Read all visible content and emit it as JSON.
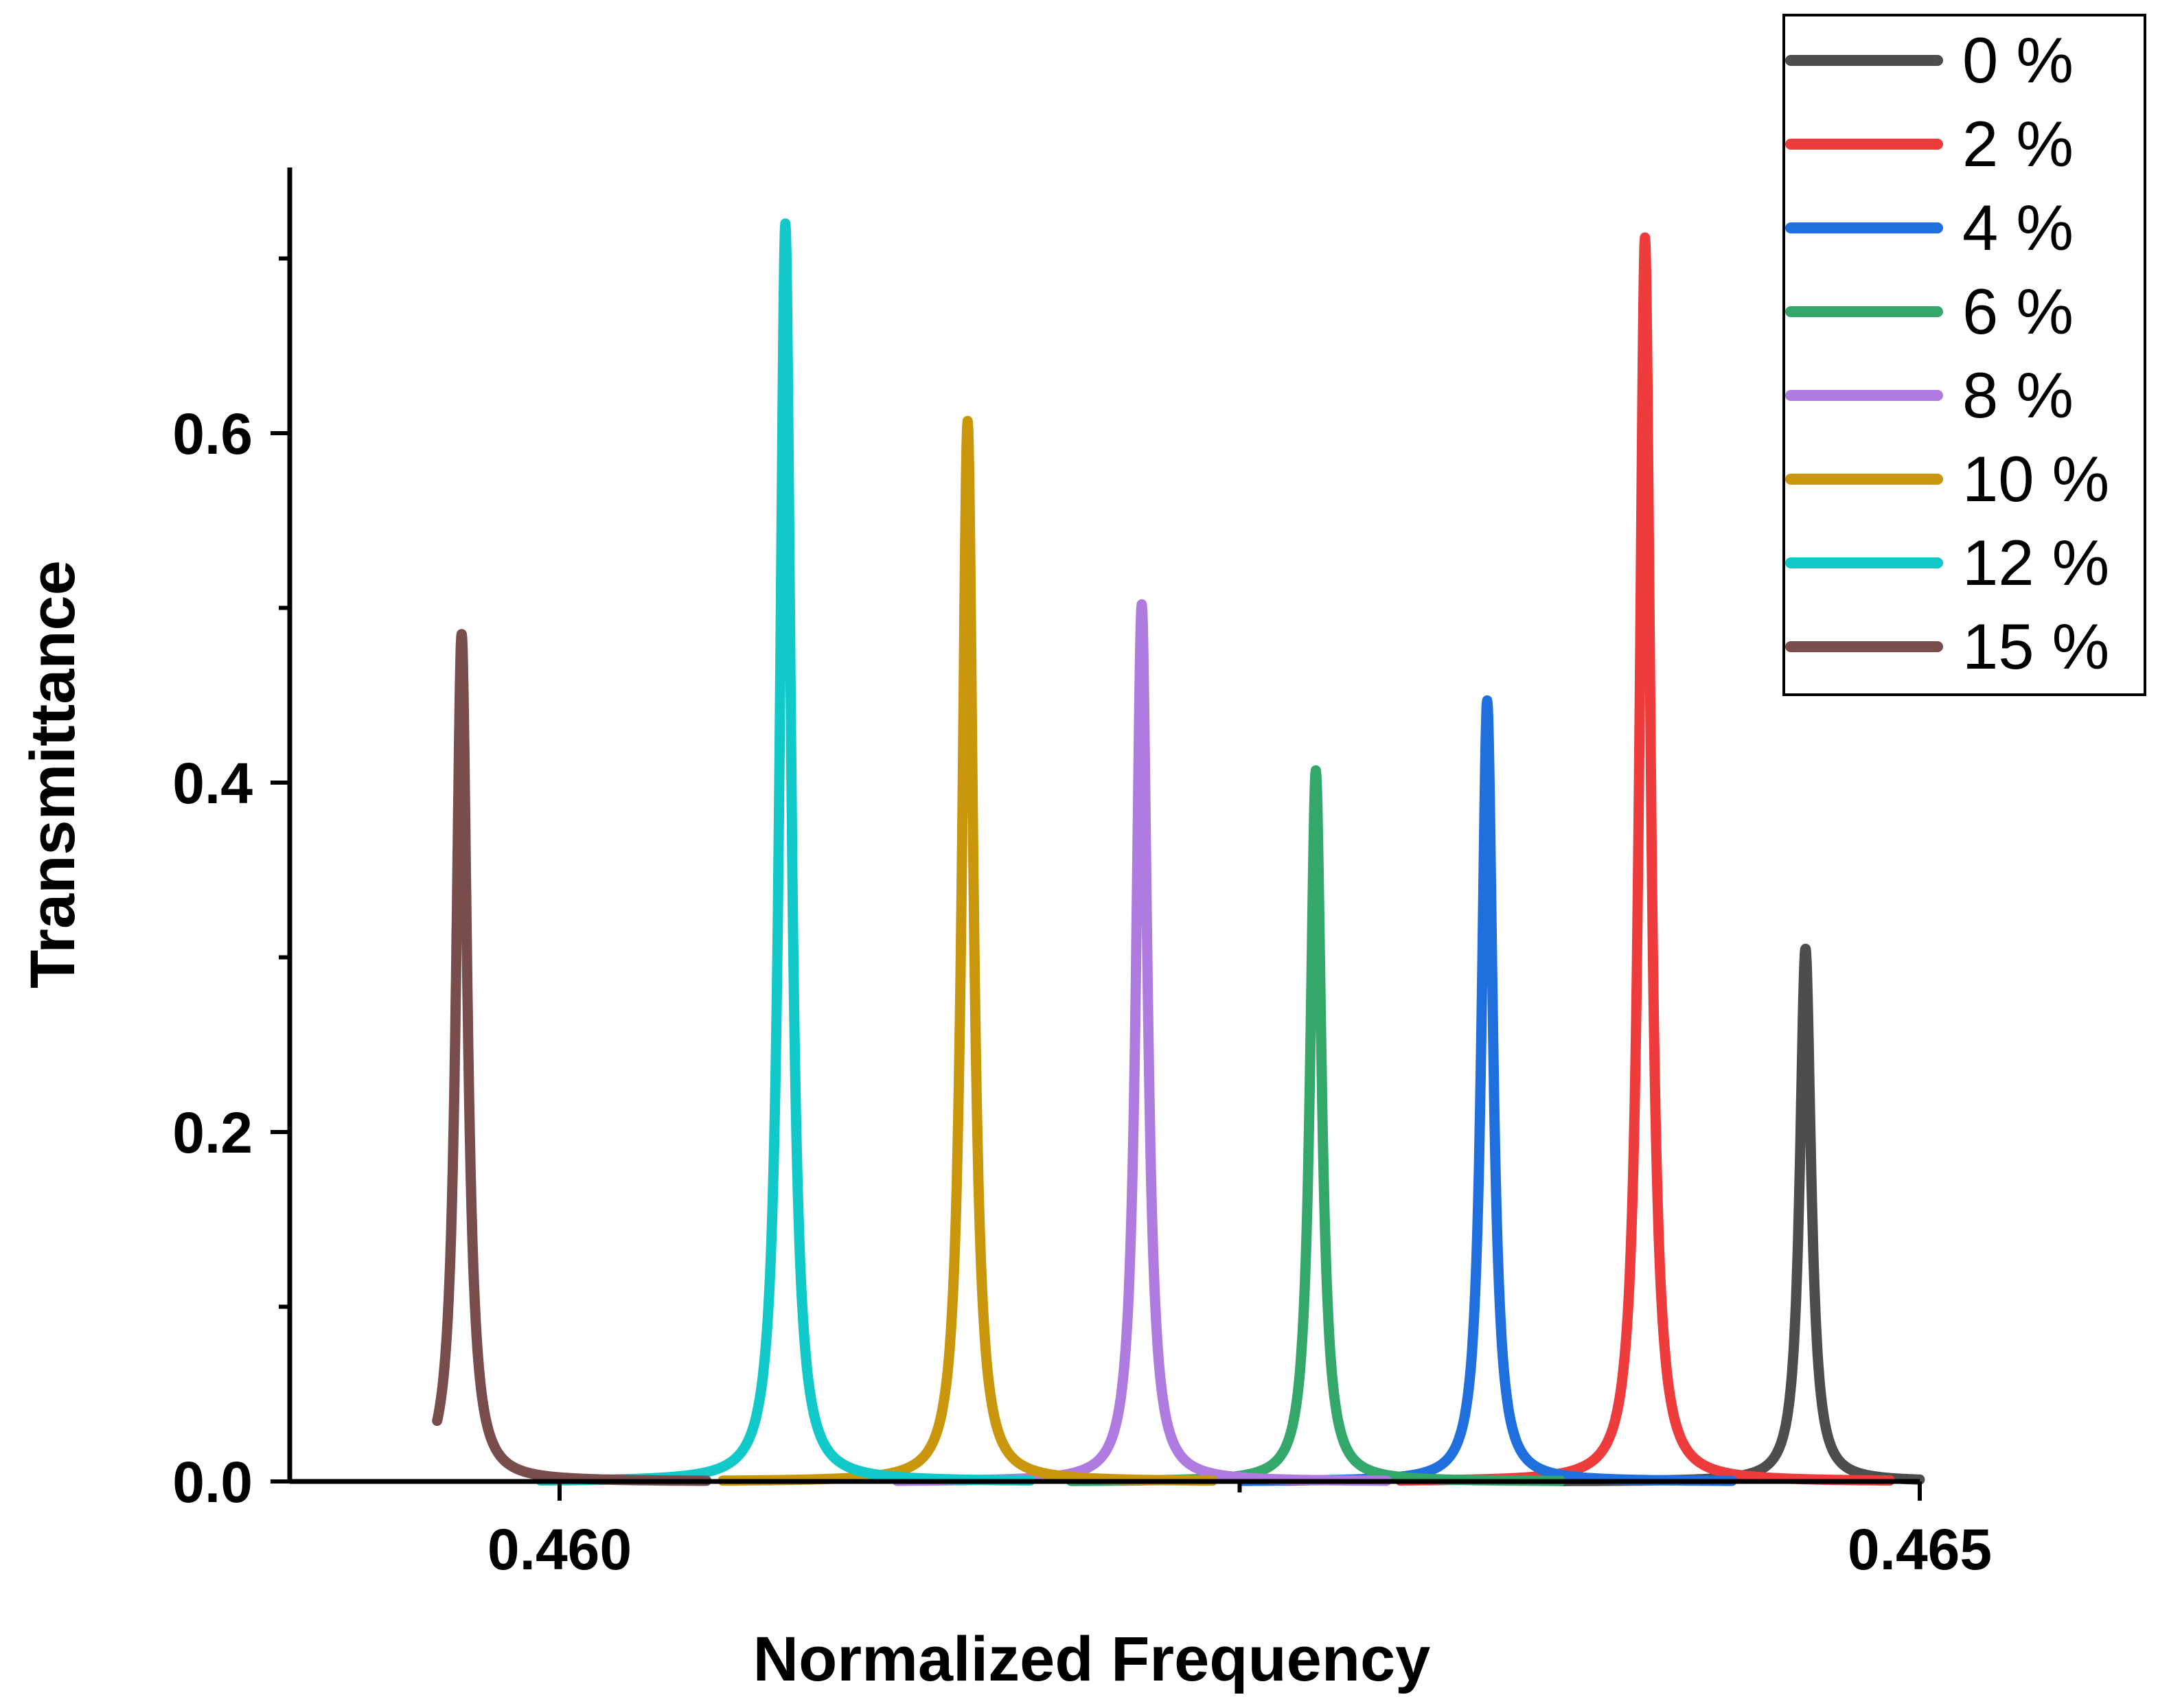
{
  "chart_data": {
    "type": "line",
    "title": "",
    "xlabel": "Normalized Frequency",
    "ylabel": "Transmittance",
    "xlim": [
      0.459,
      0.465
    ],
    "ylim": [
      0,
      0.78
    ],
    "x_ticks": [
      {
        "value": 0.46,
        "label": "0.460"
      },
      {
        "value": 0.4625,
        "label": ""
      },
      {
        "value": 0.465,
        "label": "0.465"
      }
    ],
    "y_ticks": [
      {
        "value": 0.0,
        "label": "0.0"
      },
      {
        "value": 0.1,
        "label": ""
      },
      {
        "value": 0.2,
        "label": "0.2"
      },
      {
        "value": 0.3,
        "label": ""
      },
      {
        "value": 0.4,
        "label": "0.4"
      },
      {
        "value": 0.5,
        "label": ""
      },
      {
        "value": 0.6,
        "label": "0.6"
      },
      {
        "value": 0.7,
        "label": ""
      }
    ],
    "grid": false,
    "legend_position": "top-right",
    "series": [
      {
        "name": "0 %",
        "color": "#4d4d4d",
        "peak_x": 0.46458,
        "peak_y": 0.305,
        "width": 2.5e-05
      },
      {
        "name": "2 %",
        "color": "#ee3b3b",
        "peak_x": 0.46399,
        "peak_y": 0.712,
        "width": 2.5e-05
      },
      {
        "name": "4 %",
        "color": "#1f6fde",
        "peak_x": 0.46341,
        "peak_y": 0.447,
        "width": 2.5e-05
      },
      {
        "name": "6 %",
        "color": "#34a86b",
        "peak_x": 0.46278,
        "peak_y": 0.407,
        "width": 2.5e-05
      },
      {
        "name": "8 %",
        "color": "#b07be0",
        "peak_x": 0.46214,
        "peak_y": 0.502,
        "width": 2.5e-05
      },
      {
        "name": "10 %",
        "color": "#c9960c",
        "peak_x": 0.4615,
        "peak_y": 0.607,
        "width": 2.5e-05
      },
      {
        "name": "12 %",
        "color": "#12c9c9",
        "peak_x": 0.46083,
        "peak_y": 0.72,
        "width": 2.5e-05
      },
      {
        "name": "15 %",
        "color": "#7a4d4d",
        "peak_x": 0.45964,
        "peak_y": 0.485,
        "width": 2.5e-05
      }
    ]
  }
}
